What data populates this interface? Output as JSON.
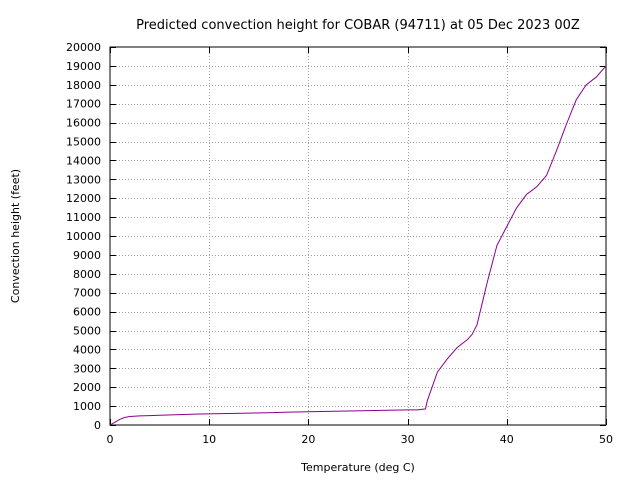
{
  "chart_data": {
    "type": "line",
    "title": "Predicted convection height for COBAR (94711) at 05 Dec 2023 00Z",
    "xlabel": "Temperature (deg C)",
    "ylabel": "Convection height (feet)",
    "xlim": [
      0,
      50
    ],
    "ylim": [
      0,
      20000
    ],
    "xticks": [
      0,
      10,
      20,
      30,
      40,
      50
    ],
    "yticks": [
      0,
      1000,
      2000,
      3000,
      4000,
      5000,
      6000,
      7000,
      8000,
      9000,
      10000,
      11000,
      12000,
      13000,
      14000,
      15000,
      16000,
      17000,
      18000,
      19000,
      20000
    ],
    "grid": true,
    "line_color": "#8b008b",
    "series": [
      {
        "x": [
          0,
          0.5,
          1,
          1.5,
          2,
          3,
          4,
          5,
          7,
          9,
          12,
          14,
          16,
          18,
          20,
          22,
          24,
          26,
          28,
          30,
          31,
          31.8,
          32,
          33,
          34,
          35,
          36,
          36.5,
          37,
          38,
          39,
          40,
          41,
          42,
          43,
          44,
          45,
          46,
          47,
          48,
          49,
          50
        ],
        "y": [
          0,
          150,
          300,
          400,
          450,
          480,
          500,
          520,
          550,
          580,
          610,
          630,
          650,
          680,
          700,
          720,
          740,
          760,
          780,
          800,
          800,
          850,
          1300,
          2800,
          3500,
          4100,
          4500,
          4800,
          5300,
          7500,
          9500,
          10500,
          11500,
          12200,
          12600,
          13200,
          14500,
          15900,
          17200,
          18000,
          18400,
          19000
        ]
      }
    ]
  }
}
